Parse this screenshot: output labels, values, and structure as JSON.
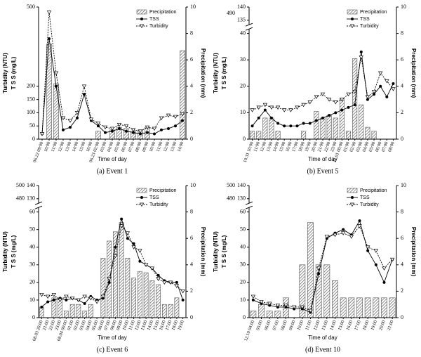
{
  "chart_data": [
    {
      "type": "bar-line",
      "caption": "(a)  Event  1",
      "xlabel": "Time of day",
      "ylabel_turbidity": "Turbidity (NTU)",
      "ylabel_tss": "T S S (mg/L)",
      "y2label": "Precipitation (mm)",
      "categories": [
        "06.22 09:00",
        "10:00",
        "11:00",
        "12:00",
        "13:00",
        "14:00",
        "15:00",
        "16:00",
        "06.23 02:00",
        "03:00",
        "04:00",
        "05:00",
        "06:00",
        "07:00",
        "08:00",
        "09:00",
        "10:00",
        "11:00",
        "12:00",
        "13:00",
        "14:00"
      ],
      "ylim": [
        0,
        500
      ],
      "yticks": [
        0,
        50,
        100,
        150,
        200,
        500
      ],
      "y2lim": [
        0,
        10
      ],
      "y2ticks": [
        0,
        2,
        4,
        6,
        8,
        10
      ],
      "series": [
        {
          "name": "Precipitation",
          "axis": "y2",
          "color": "#555555",
          "values": [
            0,
            7.2,
            4.2,
            0,
            0,
            0,
            0,
            0,
            0.6,
            0,
            0.7,
            0.9,
            0.8,
            0.6,
            0.7,
            0.9,
            0,
            0,
            0,
            0,
            6.7
          ]
        },
        {
          "name": "TSS",
          "color": "#000000",
          "marker": "circle",
          "values": [
            20,
            380,
            200,
            35,
            45,
            80,
            170,
            70,
            50,
            25,
            30,
            40,
            30,
            25,
            20,
            25,
            20,
            35,
            40,
            50,
            70
          ]
        },
        {
          "name": "Turbidity",
          "color": "#000000",
          "marker": "triangle-down",
          "dashed": true,
          "values": [
            20,
            480,
            250,
            80,
            70,
            100,
            200,
            75,
            60,
            45,
            40,
            55,
            50,
            35,
            30,
            45,
            40,
            80,
            90,
            85,
            95
          ]
        }
      ]
    },
    {
      "type": "bar-line",
      "caption": "(b)  Event  5",
      "xlabel": "Time of day",
      "ylabel_turbidity": "Turbidity (NTU)",
      "ylabel_tss": "T S S (mg/L)",
      "y2label": "Precipitation (mm)",
      "categories": [
        "10.31 10:00",
        "11:00",
        "12:00",
        "13:00",
        "14:00",
        "15:00",
        "16:00",
        "17:00",
        "18:00",
        "19:00",
        "20:00",
        "21:00",
        "22:00",
        "23:00",
        "11.01 00:00",
        "01:00",
        "02:00",
        "03:00",
        "04:00",
        "05:00",
        "06:00",
        "07:00",
        "08:00"
      ],
      "ylim": [
        0,
        140
      ],
      "ybreak": [
        40,
        135
      ],
      "yticks": [
        0,
        10,
        20,
        30,
        40,
        135,
        140
      ],
      "tss_lim": [
        480,
        500
      ],
      "tss_ticks": [
        490
      ],
      "y2lim": [
        0,
        10
      ],
      "y2ticks": [
        0,
        2,
        4,
        6,
        8,
        10
      ],
      "series": [
        {
          "name": "Precipitation",
          "axis": "y2",
          "color": "#555555",
          "values": [
            0.6,
            0.6,
            1.6,
            1.6,
            0.6,
            0,
            0,
            0,
            0.6,
            0,
            2.1,
            1.6,
            1.8,
            1.6,
            3.1,
            0.6,
            6.1,
            2.6,
            0.9,
            0.6,
            0,
            0,
            0
          ]
        },
        {
          "name": "TSS",
          "color": "#000000",
          "marker": "circle",
          "values": [
            5,
            8,
            11,
            8,
            6,
            5,
            5,
            5,
            6,
            6,
            7,
            8,
            9,
            10,
            11,
            12,
            13,
            33,
            15,
            17,
            20,
            16,
            21
          ]
        },
        {
          "name": "Turbidity",
          "color": "#000000",
          "marker": "triangle-down",
          "dashed": true,
          "values": [
            11,
            12,
            13,
            12,
            12,
            11,
            11,
            12,
            13,
            14,
            16,
            17,
            15,
            14,
            15,
            17,
            18,
            31,
            16,
            18,
            25,
            22,
            19
          ]
        }
      ]
    },
    {
      "type": "bar-line",
      "caption": "(c)  Event  6",
      "xlabel": "Time of day",
      "ylabel_turbidity": "Turbidity (NTU)",
      "ylabel_tss": "T S S (mg/L)",
      "y2label": "Precipitation (mm)",
      "categories": [
        "08.03 20:00",
        "21:00",
        "22:00",
        "23:00",
        "08.04 00:00",
        "01:00",
        "02:00",
        "03:00",
        "04:00",
        "05:00",
        "06:00",
        "07:00",
        "08:00",
        "09:00",
        "10:00",
        "11:00",
        "12:00",
        "13:00",
        "14:00",
        "15:00",
        "16:00",
        "17:00",
        "18:00",
        "19:00"
      ],
      "ylim": [
        0,
        140
      ],
      "ybreak": [
        60,
        130
      ],
      "yticks": [
        0,
        10,
        20,
        30,
        40,
        50,
        60,
        130,
        140
      ],
      "tss_lim": [
        480,
        500
      ],
      "tss_ticks": [
        480,
        500
      ],
      "y2lim": [
        0,
        10
      ],
      "y2ticks": [
        0,
        2,
        4,
        6,
        8,
        10
      ],
      "series": [
        {
          "name": "Precipitation",
          "axis": "y2",
          "color": "#555555",
          "values": [
            0.8,
            0,
            1.5,
            1.5,
            0.5,
            1,
            1,
            0.5,
            1,
            0,
            4.5,
            5.8,
            6.5,
            7.2,
            4.5,
            3,
            3.5,
            3.4,
            2.8,
            2.5,
            1,
            1,
            1.5,
            0
          ]
        },
        {
          "name": "TSS",
          "color": "#000000",
          "marker": "circle",
          "values": [
            6,
            9,
            10,
            11,
            10,
            11,
            10,
            8,
            12,
            10,
            11,
            20,
            40,
            56,
            45,
            42,
            32,
            30,
            28,
            24,
            21,
            20,
            20,
            10
          ]
        },
        {
          "name": "Turbidity",
          "color": "#000000",
          "marker": "triangle-down",
          "dashed": true,
          "values": [
            13,
            12,
            13,
            10,
            12,
            11,
            10,
            12,
            11,
            9,
            12,
            22,
            35,
            52,
            48,
            40,
            38,
            30,
            28,
            22,
            20,
            20,
            18,
            15
          ]
        }
      ]
    },
    {
      "type": "bar-line",
      "caption": "(d)  Event  10",
      "xlabel": "Time of day",
      "ylabel_turbidity": "Turbidity (NTU)",
      "ylabel_tss": "T S S (mg/L)",
      "y2label": "Precipitation (mm)",
      "categories": [
        "12.10 04:00",
        "05:00",
        "06:00",
        "07:00",
        "08:00",
        "09:00",
        "10:00",
        "11:00",
        "12:00",
        "13:00",
        "14:00",
        "15:00",
        "16:00",
        "17:00",
        "18:00",
        "19:00",
        "20:00",
        "21:00"
      ],
      "ylim": [
        0,
        140
      ],
      "ybreak": [
        60,
        130
      ],
      "yticks": [
        0,
        10,
        20,
        30,
        40,
        50,
        60,
        130,
        140
      ],
      "tss_lim": [
        480,
        500
      ],
      "tss_ticks": [
        480,
        500
      ],
      "y2lim": [
        0,
        10
      ],
      "y2ticks": [
        0,
        2,
        4,
        6,
        8,
        10
      ],
      "series": [
        {
          "name": "Precipitation",
          "axis": "y2",
          "color": "#555555",
          "values": [
            0.5,
            1,
            0.5,
            0.5,
            1.5,
            0,
            4,
            7.2,
            4,
            4,
            2.8,
            1.5,
            1.5,
            1.5,
            1.5,
            1.5,
            1.5,
            1.5
          ]
        },
        {
          "name": "TSS",
          "color": "#000000",
          "marker": "circle",
          "values": [
            10,
            8,
            7,
            6,
            6,
            5,
            5,
            3,
            25,
            45,
            48,
            50,
            47,
            55,
            38,
            30,
            20,
            33
          ]
        },
        {
          "name": "Turbidity",
          "color": "#000000",
          "marker": "triangle-down",
          "dashed": true,
          "values": [
            12,
            9,
            8,
            7,
            7,
            6,
            6,
            4,
            28,
            46,
            47,
            48,
            46,
            52,
            40,
            38,
            28,
            33
          ]
        }
      ]
    }
  ]
}
